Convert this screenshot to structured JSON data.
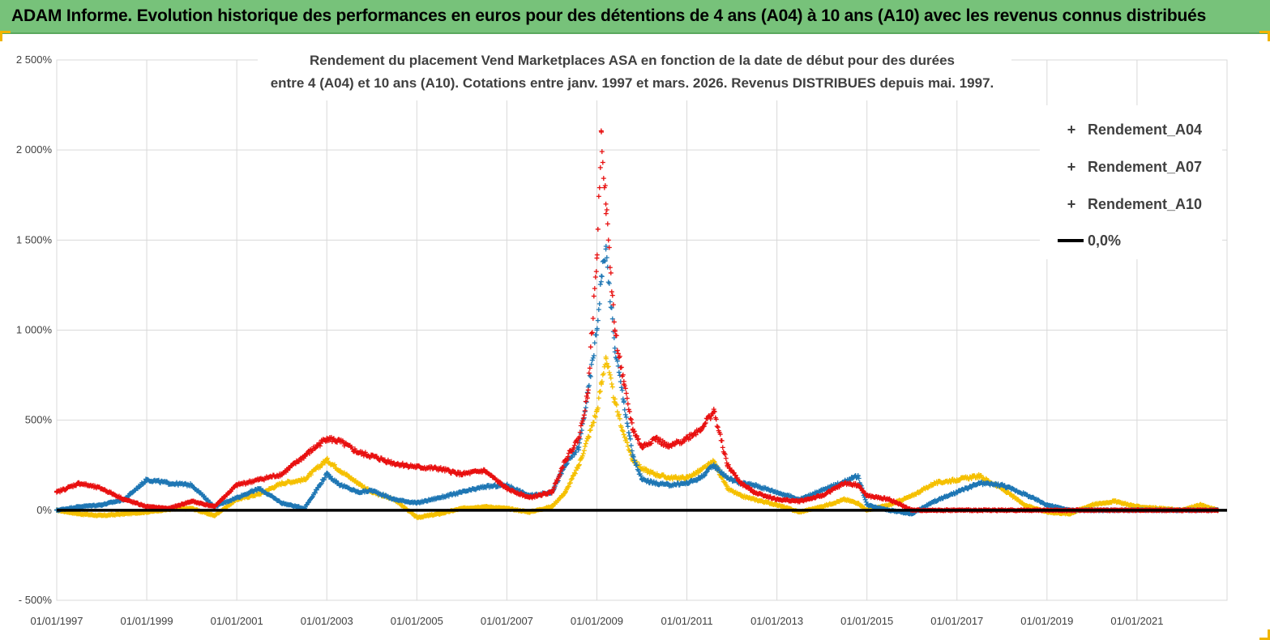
{
  "banner": {
    "title": "ADAM Informe. Evolution historique des performances en euros pour des détentions de 4 ans (A04) à 10 ans (A10) avec les revenus connus distribués"
  },
  "colors": {
    "banner_bg": "#77c27a",
    "accent_corner": "#f0b400",
    "A04": "#f5c000",
    "A07": "#1f77b4",
    "A10": "#e81010",
    "zero_line": "#000000",
    "grid": "#d9d9d9"
  },
  "chart_data": {
    "type": "scatter",
    "title_lines": [
      "Rendement du placement Vend Marketplaces ASA en fonction de la date de début pour des durées",
      "entre 4 (A04) et 10 ans (A10). Cotations entre janv. 1997 et mars. 2026. Revenus DISTRIBUES depuis mai. 1997."
    ],
    "xlim": [
      1997.0,
      2023.0
    ],
    "ylim": [
      -500,
      2500
    ],
    "x_tick_values": [
      1997,
      1999,
      2001,
      2003,
      2005,
      2007,
      2009,
      2011,
      2013,
      2015,
      2017,
      2019,
      2021
    ],
    "x_tick_labels": [
      "01/01/1997",
      "01/01/1999",
      "01/01/2001",
      "01/01/2003",
      "01/01/2005",
      "01/01/2007",
      "01/01/2009",
      "01/01/2011",
      "01/01/2013",
      "01/01/2015",
      "01/01/2017",
      "01/01/2019",
      "01/01/2021"
    ],
    "y_tick_values": [
      -500,
      0,
      500,
      1000,
      1500,
      2000,
      2500
    ],
    "y_tick_labels": [
      "- 500%",
      "0%",
      "500%",
      "1 000%",
      "1 500%",
      "2 000%",
      "2 500%"
    ],
    "grid": true,
    "legend_position": "top-right",
    "legend": [
      "Rendement_A04",
      "Rendement_A07",
      "Rendement_A10",
      "0,0%"
    ],
    "series": [
      {
        "name": "Rendement_A04",
        "x": [
          1997.0,
          1997.5,
          1998.0,
          1998.5,
          1999.0,
          1999.5,
          2000.0,
          2000.5,
          2001.0,
          2001.5,
          2002.0,
          2002.5,
          2003.0,
          2003.3,
          2003.7,
          2004.0,
          2004.5,
          2005.0,
          2005.5,
          2006.0,
          2006.5,
          2007.0,
          2007.5,
          2008.0,
          2008.3,
          2008.6,
          2008.8,
          2009.0,
          2009.1,
          2009.2,
          2009.4,
          2009.6,
          2009.8,
          2010.0,
          2010.3,
          2010.6,
          2011.0,
          2011.3,
          2011.6,
          2011.9,
          2012.2,
          2012.5,
          2013.0,
          2013.5,
          2014.0,
          2014.5,
          2014.8,
          2015.0,
          2015.5,
          2016.0,
          2016.5,
          2017.0,
          2017.5,
          2018.0,
          2018.5,
          2019.0,
          2019.5,
          2020.0,
          2020.5,
          2021.0,
          2021.5,
          2022.0,
          2022.4,
          2022.8
        ],
        "y": [
          0,
          -20,
          -30,
          -20,
          -10,
          5,
          10,
          -30,
          60,
          90,
          150,
          170,
          280,
          220,
          150,
          100,
          60,
          -40,
          -20,
          10,
          20,
          10,
          -10,
          20,
          100,
          250,
          400,
          550,
          700,
          850,
          600,
          420,
          280,
          230,
          200,
          180,
          180,
          220,
          270,
          120,
          80,
          60,
          30,
          -10,
          20,
          60,
          40,
          0,
          30,
          80,
          150,
          170,
          190,
          120,
          30,
          -10,
          -20,
          30,
          50,
          20,
          10,
          0,
          30,
          0
        ]
      },
      {
        "name": "Rendement_A07",
        "x": [
          1997.0,
          1997.5,
          1998.0,
          1998.5,
          1999.0,
          1999.5,
          2000.0,
          2000.5,
          2001.0,
          2001.5,
          2002.0,
          2002.5,
          2003.0,
          2003.3,
          2003.7,
          2004.0,
          2004.5,
          2005.0,
          2005.5,
          2006.0,
          2006.5,
          2007.0,
          2007.5,
          2008.0,
          2008.3,
          2008.6,
          2008.8,
          2009.0,
          2009.1,
          2009.2,
          2009.4,
          2009.6,
          2009.8,
          2010.0,
          2010.3,
          2010.6,
          2011.0,
          2011.3,
          2011.6,
          2011.9,
          2012.2,
          2012.5,
          2013.0,
          2013.5,
          2014.0,
          2014.5,
          2014.8,
          2015.0,
          2015.5,
          2016.0,
          2016.5,
          2017.0,
          2017.5,
          2018.0,
          2018.5,
          2019.0,
          2019.5,
          2020.0,
          2020.5,
          2021.0,
          2021.5,
          2022.0,
          2022.4,
          2022.8
        ],
        "y": [
          0,
          20,
          30,
          60,
          170,
          150,
          140,
          20,
          70,
          120,
          40,
          10,
          200,
          140,
          100,
          110,
          60,
          40,
          70,
          100,
          130,
          140,
          80,
          100,
          250,
          350,
          650,
          1000,
          1300,
          1450,
          900,
          600,
          300,
          170,
          150,
          140,
          150,
          180,
          250,
          180,
          150,
          140,
          100,
          60,
          110,
          160,
          190,
          30,
          0,
          -20,
          50,
          100,
          150,
          140,
          90,
          30,
          0,
          0,
          0,
          0,
          0,
          0,
          0,
          0
        ]
      },
      {
        "name": "Rendement_A10",
        "x": [
          1997.0,
          1997.5,
          1998.0,
          1998.5,
          1999.0,
          1999.5,
          2000.0,
          2000.5,
          2001.0,
          2001.5,
          2002.0,
          2002.5,
          2003.0,
          2003.3,
          2003.7,
          2004.0,
          2004.5,
          2005.0,
          2005.5,
          2006.0,
          2006.5,
          2007.0,
          2007.5,
          2008.0,
          2008.3,
          2008.6,
          2008.8,
          2009.0,
          2009.1,
          2009.2,
          2009.4,
          2009.6,
          2009.8,
          2010.0,
          2010.3,
          2010.6,
          2011.0,
          2011.3,
          2011.6,
          2011.9,
          2012.2,
          2012.5,
          2013.0,
          2013.5,
          2014.0,
          2014.5,
          2014.8,
          2015.0,
          2015.5,
          2016.0,
          2016.5,
          2017.0,
          2017.5,
          2018.0,
          2018.5,
          2019.0,
          2019.5,
          2020.0,
          2020.5,
          2021.0,
          2021.5,
          2022.0,
          2022.4,
          2022.8
        ],
        "y": [
          100,
          150,
          120,
          60,
          20,
          10,
          50,
          20,
          140,
          170,
          200,
          300,
          400,
          380,
          320,
          300,
          260,
          240,
          230,
          200,
          220,
          120,
          70,
          100,
          280,
          400,
          650,
          1400,
          2100,
          1700,
          1000,
          700,
          450,
          350,
          400,
          350,
          400,
          450,
          550,
          250,
          150,
          100,
          60,
          50,
          80,
          150,
          140,
          80,
          60,
          0,
          0,
          0,
          0,
          0,
          0,
          0,
          0,
          0,
          0,
          0,
          0,
          0,
          0,
          0
        ]
      },
      {
        "name": "0,0%",
        "x": [
          1997.0,
          2023.0
        ],
        "y": [
          0,
          0
        ]
      }
    ]
  }
}
